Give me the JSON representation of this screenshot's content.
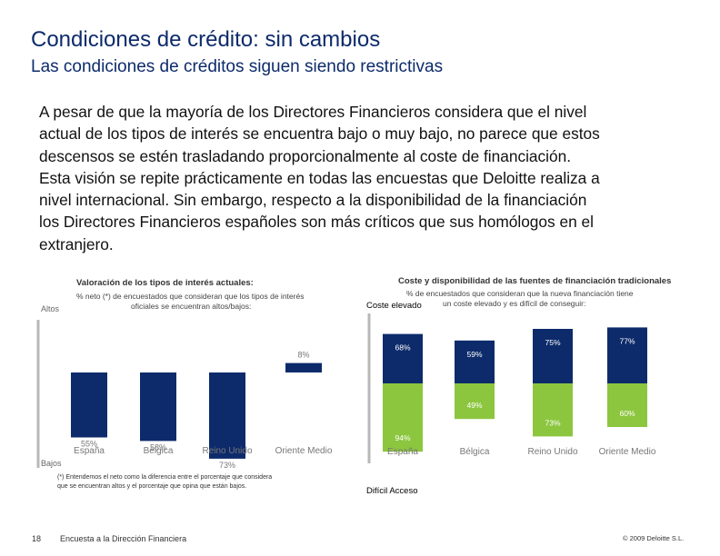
{
  "header": {
    "title": "Condiciones de crédito: sin cambios",
    "subtitle": "Las condiciones de créditos siguen siendo restrictivas"
  },
  "body": {
    "lines": [
      "A pesar de que la mayoría de los Directores Financieros considera que el nivel",
      "actual de los tipos de interés se encuentra bajo o muy bajo, no parece que estos",
      "descensos se estén trasladando proporcionalmente al coste de financiación.",
      "Esta visión se repite prácticamente en todas las encuestas que Deloitte realiza a",
      "nivel internacional. Sin embargo, respecto a la disponibilidad de la financiación",
      "los Directores Financieros españoles son más críticos que sus homólogos en el",
      "extranjero."
    ]
  },
  "chart_data": [
    {
      "type": "bar",
      "title": "Valoración de los tipos de interés actuales:",
      "subtitle_lines": [
        "% neto (*) de encuestados que consideran que los tipos de interés",
        "oficiales se encuentran altos/bajos:"
      ],
      "top_label": "Altos",
      "bottom_label": "Bajos",
      "categories": [
        "España",
        "Bélgica",
        "Reino Unido",
        "Oriente Medio"
      ],
      "values": [
        -55,
        -58,
        -73,
        8
      ],
      "data_labels": [
        "55%",
        "58%",
        "73%",
        "8%"
      ],
      "ylim": [
        -100,
        30
      ],
      "colors": {
        "bar": "#0d2b6b",
        "axis": "#b8b8b8",
        "label": "#777777"
      }
    },
    {
      "type": "stacked-bar",
      "title": "Coste y disponibilidad de las fuentes de financiación tradicionales",
      "subtitle_lines": [
        "% de encuestados que consideran que la nueva financiación tiene",
        "un coste elevado y es difícil de conseguir:"
      ],
      "top_label": "Coste elevado",
      "bottom_label": "Difícil Acceso",
      "categories": [
        "España",
        "Bélgica",
        "Reino Unido",
        "Oriente Medio"
      ],
      "series": [
        {
          "name": "Coste elevado",
          "values": [
            68,
            59,
            75,
            77
          ],
          "labels": [
            "68%",
            "59%",
            "75%",
            "77%"
          ],
          "color": "#0d2b6b"
        },
        {
          "name": "Difícil Acceso",
          "values": [
            94,
            49,
            73,
            60
          ],
          "labels": [
            "94%",
            "49%",
            "73%",
            "60%"
          ],
          "color": "#8cc63f"
        }
      ],
      "colors": {
        "axis": "#b8b8b8",
        "label": "#777777"
      }
    }
  ],
  "footnote": {
    "line1": "(*) Entendemos el neto como la diferencia entre el porcentaje que considera",
    "line2": "que se encuentran altos y el porcentaje que opina que están bajos."
  },
  "footer": {
    "page_number": "18",
    "left_text": "Encuesta a la Dirección Financiera",
    "right_text": "© 2009 Deloitte S.L."
  }
}
